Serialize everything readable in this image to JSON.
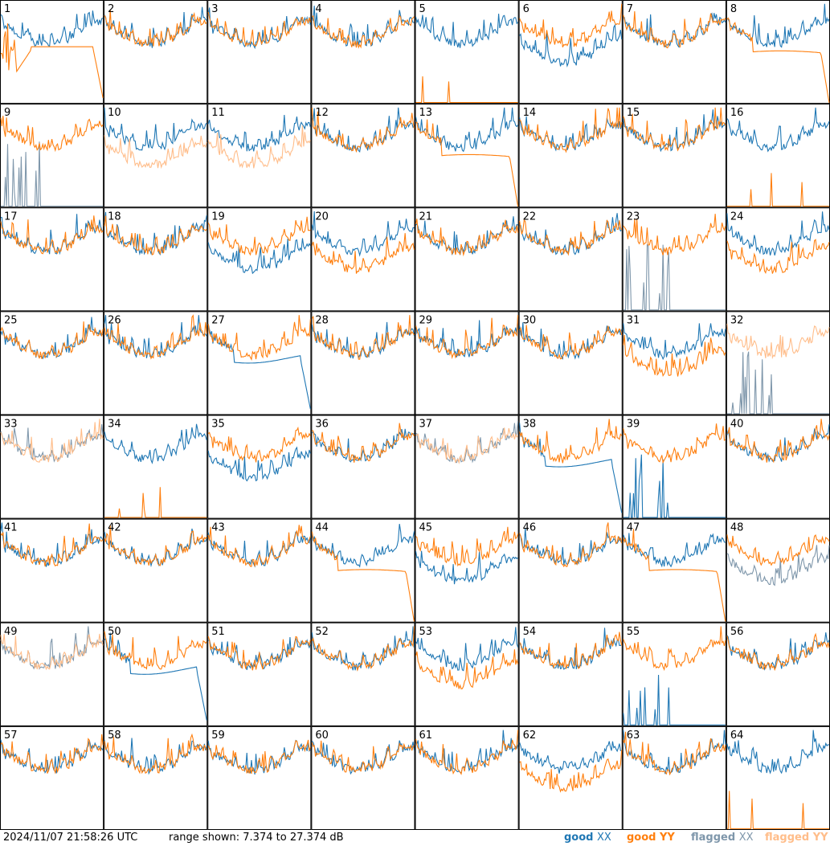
{
  "footer": {
    "timestamp": "2024/11/07 21:58:26 UTC",
    "range_text": "range shown: 7.374 to 27.374 dB",
    "legend": [
      {
        "word": "good",
        "pol": "XX",
        "color": "#1f77b4"
      },
      {
        "word": "good",
        "pol": "YY",
        "color": "#ff7f0e"
      },
      {
        "word": "flagged",
        "pol": "XX",
        "color": "#7f97ab"
      },
      {
        "word": "flagged",
        "pol": "YY",
        "color": "#ffbd8a"
      }
    ]
  },
  "colors": {
    "good_xx": "#1f77b4",
    "good_yy": "#ff7f0e",
    "flagged_xx": "#7f97ab",
    "flagged_yy": "#ffbd8a"
  },
  "chart_data": {
    "type": "line",
    "layout": "small-multiples grid, 8 columns x 8 rows",
    "y_range_db": [
      7.374,
      27.374
    ],
    "series_keys": [
      "XX",
      "YY"
    ],
    "panels": [
      {
        "label": "1",
        "xx": "good",
        "yy": "good",
        "shape": "dip_decay"
      },
      {
        "label": "2",
        "xx": "good",
        "yy": "good",
        "shape": "normal"
      },
      {
        "label": "3",
        "xx": "good",
        "yy": "good",
        "shape": "normal"
      },
      {
        "label": "4",
        "xx": "good",
        "yy": "good",
        "shape": "normal"
      },
      {
        "label": "5",
        "xx": "good",
        "yy": "good",
        "shape": "yy_dead"
      },
      {
        "label": "6",
        "xx": "good",
        "yy": "good",
        "shape": "xx_low"
      },
      {
        "label": "7",
        "xx": "good",
        "yy": "good",
        "shape": "normal"
      },
      {
        "label": "8",
        "xx": "good",
        "yy": "good",
        "shape": "flat_yy"
      },
      {
        "label": "9",
        "xx": "flagged",
        "yy": "good",
        "shape": "xx_dead"
      },
      {
        "label": "10",
        "xx": "good",
        "yy": "flagged",
        "shape": "yy_low"
      },
      {
        "label": "11",
        "xx": "good",
        "yy": "flagged",
        "shape": "yy_low"
      },
      {
        "label": "12",
        "xx": "good",
        "yy": "good",
        "shape": "normal"
      },
      {
        "label": "13",
        "xx": "good",
        "yy": "good",
        "shape": "flat_yy"
      },
      {
        "label": "14",
        "xx": "good",
        "yy": "good",
        "shape": "normal"
      },
      {
        "label": "15",
        "xx": "good",
        "yy": "good",
        "shape": "normal"
      },
      {
        "label": "16",
        "xx": "good",
        "yy": "good",
        "shape": "yy_dead"
      },
      {
        "label": "17",
        "xx": "good",
        "yy": "good",
        "shape": "normal"
      },
      {
        "label": "18",
        "xx": "good",
        "yy": "good",
        "shape": "normal"
      },
      {
        "label": "19",
        "xx": "good",
        "yy": "good",
        "shape": "xx_low"
      },
      {
        "label": "20",
        "xx": "good",
        "yy": "good",
        "shape": "yy_low"
      },
      {
        "label": "21",
        "xx": "good",
        "yy": "good",
        "shape": "normal"
      },
      {
        "label": "22",
        "xx": "good",
        "yy": "good",
        "shape": "normal"
      },
      {
        "label": "23",
        "xx": "flagged",
        "yy": "good",
        "shape": "xx_dead"
      },
      {
        "label": "24",
        "xx": "good",
        "yy": "good",
        "shape": "yy_low"
      },
      {
        "label": "25",
        "xx": "good",
        "yy": "good",
        "shape": "normal"
      },
      {
        "label": "26",
        "xx": "good",
        "yy": "good",
        "shape": "normal"
      },
      {
        "label": "27",
        "xx": "good",
        "yy": "good",
        "shape": "flat_xx"
      },
      {
        "label": "28",
        "xx": "good",
        "yy": "good",
        "shape": "normal"
      },
      {
        "label": "29",
        "xx": "good",
        "yy": "good",
        "shape": "normal"
      },
      {
        "label": "30",
        "xx": "good",
        "yy": "good",
        "shape": "normal"
      },
      {
        "label": "31",
        "xx": "good",
        "yy": "good",
        "shape": "yy_low"
      },
      {
        "label": "32",
        "xx": "flagged",
        "yy": "flagged",
        "shape": "xx_dead"
      },
      {
        "label": "33",
        "xx": "flagged",
        "yy": "flagged",
        "shape": "normal"
      },
      {
        "label": "34",
        "xx": "good",
        "yy": "good",
        "shape": "yy_dead"
      },
      {
        "label": "35",
        "xx": "good",
        "yy": "good",
        "shape": "xx_low"
      },
      {
        "label": "36",
        "xx": "good",
        "yy": "good",
        "shape": "normal"
      },
      {
        "label": "37",
        "xx": "flagged",
        "yy": "flagged",
        "shape": "normal"
      },
      {
        "label": "38",
        "xx": "good",
        "yy": "good",
        "shape": "flat_xx"
      },
      {
        "label": "39",
        "xx": "good",
        "yy": "good",
        "shape": "xx_dead"
      },
      {
        "label": "40",
        "xx": "good",
        "yy": "good",
        "shape": "normal"
      },
      {
        "label": "41",
        "xx": "good",
        "yy": "good",
        "shape": "normal"
      },
      {
        "label": "42",
        "xx": "good",
        "yy": "good",
        "shape": "normal"
      },
      {
        "label": "43",
        "xx": "good",
        "yy": "good",
        "shape": "normal"
      },
      {
        "label": "44",
        "xx": "good",
        "yy": "good",
        "shape": "flat_yy"
      },
      {
        "label": "45",
        "xx": "good",
        "yy": "good",
        "shape": "xx_low"
      },
      {
        "label": "46",
        "xx": "good",
        "yy": "good",
        "shape": "normal"
      },
      {
        "label": "47",
        "xx": "good",
        "yy": "good",
        "shape": "flat_yy"
      },
      {
        "label": "48",
        "xx": "flagged",
        "yy": "good",
        "shape": "xx_low"
      },
      {
        "label": "49",
        "xx": "flagged",
        "yy": "flagged",
        "shape": "normal"
      },
      {
        "label": "50",
        "xx": "good",
        "yy": "good",
        "shape": "flat_xx"
      },
      {
        "label": "51",
        "xx": "good",
        "yy": "good",
        "shape": "normal"
      },
      {
        "label": "52",
        "xx": "good",
        "yy": "good",
        "shape": "normal"
      },
      {
        "label": "53",
        "xx": "good",
        "yy": "good",
        "shape": "yy_low"
      },
      {
        "label": "54",
        "xx": "good",
        "yy": "good",
        "shape": "normal"
      },
      {
        "label": "55",
        "xx": "good",
        "yy": "good",
        "shape": "xx_dead"
      },
      {
        "label": "56",
        "xx": "good",
        "yy": "good",
        "shape": "normal"
      },
      {
        "label": "57",
        "xx": "good",
        "yy": "good",
        "shape": "normal"
      },
      {
        "label": "58",
        "xx": "good",
        "yy": "good",
        "shape": "normal"
      },
      {
        "label": "59",
        "xx": "good",
        "yy": "good",
        "shape": "normal"
      },
      {
        "label": "60",
        "xx": "good",
        "yy": "good",
        "shape": "normal"
      },
      {
        "label": "61",
        "xx": "good",
        "yy": "good",
        "shape": "normal"
      },
      {
        "label": "62",
        "xx": "good",
        "yy": "good",
        "shape": "yy_low"
      },
      {
        "label": "63",
        "xx": "good",
        "yy": "good",
        "shape": "normal"
      },
      {
        "label": "64",
        "xx": "good",
        "yy": "good",
        "shape": "yy_dead"
      }
    ]
  }
}
